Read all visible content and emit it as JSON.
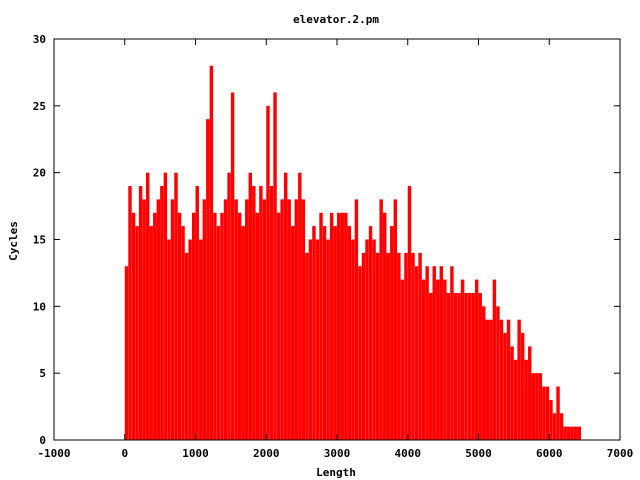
{
  "chart_data": {
    "type": "bar",
    "title": "elevator.2.pm",
    "xlabel": "Length",
    "ylabel": "Cycles",
    "xlim": [
      -1000,
      7000
    ],
    "ylim": [
      0,
      30
    ],
    "x_ticks": [
      "-1000",
      "0",
      "1000",
      "2000",
      "3000",
      "4000",
      "5000",
      "6000",
      "7000"
    ],
    "y_ticks": [
      "0",
      "5",
      "10",
      "15",
      "20",
      "25",
      "30"
    ],
    "grid": false,
    "legend": "none",
    "bar_color": "#ff0000",
    "x": [
      0,
      50,
      100,
      150,
      200,
      250,
      300,
      350,
      400,
      450,
      500,
      550,
      600,
      650,
      700,
      750,
      800,
      850,
      900,
      950,
      1000,
      1050,
      1100,
      1150,
      1200,
      1250,
      1300,
      1350,
      1400,
      1450,
      1500,
      1550,
      1600,
      1650,
      1700,
      1750,
      1800,
      1850,
      1900,
      1950,
      2000,
      2050,
      2100,
      2150,
      2200,
      2250,
      2300,
      2350,
      2400,
      2450,
      2500,
      2550,
      2600,
      2650,
      2700,
      2750,
      2800,
      2850,
      2900,
      2950,
      3000,
      3050,
      3100,
      3150,
      3200,
      3250,
      3300,
      3350,
      3400,
      3450,
      3500,
      3550,
      3600,
      3650,
      3700,
      3750,
      3800,
      3850,
      3900,
      3950,
      4000,
      4050,
      4100,
      4150,
      4200,
      4250,
      4300,
      4350,
      4400,
      4450,
      4500,
      4550,
      4600,
      4650,
      4700,
      4750,
      4800,
      4850,
      4900,
      4950,
      5000,
      5050,
      5100,
      5150,
      5200,
      5250,
      5300,
      5350,
      5400,
      5450,
      5500,
      5550,
      5600,
      5650,
      5700,
      5750,
      5800,
      5850,
      5900,
      5950,
      6000,
      6050,
      6100,
      6150,
      6200,
      6250,
      6300,
      6350,
      6400
    ],
    "values": [
      13,
      19,
      17,
      16,
      19,
      18,
      20,
      16,
      17,
      18,
      19,
      20,
      15,
      18,
      20,
      17,
      16,
      14,
      15,
      17,
      19,
      15,
      18,
      24,
      28,
      17,
      16,
      17,
      18,
      20,
      26,
      18,
      17,
      16,
      18,
      20,
      19,
      17,
      19,
      18,
      25,
      19,
      26,
      17,
      18,
      20,
      18,
      16,
      18,
      20,
      18,
      14,
      15,
      16,
      15,
      17,
      16,
      15,
      17,
      16,
      17,
      17,
      17,
      16,
      15,
      18,
      13,
      14,
      15,
      16,
      15,
      14,
      18,
      17,
      14,
      16,
      18,
      14,
      12,
      14,
      19,
      14,
      13,
      14,
      12,
      13,
      11,
      13,
      12,
      13,
      12,
      11,
      13,
      11,
      11,
      12,
      11,
      11,
      11,
      12,
      11,
      10,
      9,
      9,
      12,
      10,
      9,
      8,
      9,
      7,
      6,
      9,
      8,
      6,
      7,
      5,
      5,
      5,
      4,
      4,
      3,
      2,
      4,
      2,
      1,
      1,
      1,
      1,
      1
    ]
  }
}
